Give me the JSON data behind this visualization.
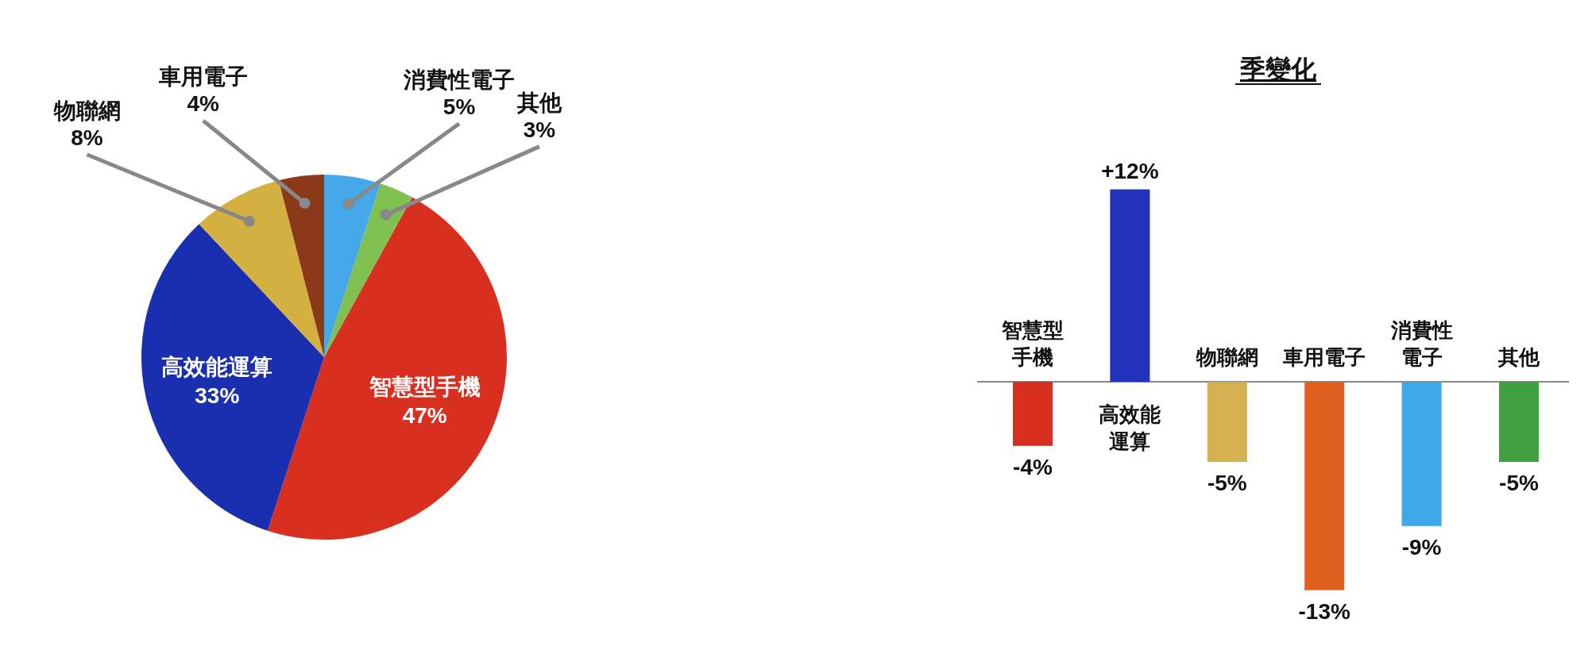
{
  "chart_data": [
    {
      "type": "pie",
      "categories": [
        "智慧型手機",
        "高效能運算",
        "物聯網",
        "車用電子",
        "消費性電子",
        "其他"
      ],
      "values": [
        47,
        33,
        8,
        4,
        5,
        3
      ],
      "colors": [
        "#d83020",
        "#1a2fb0",
        "#d4b040",
        "#8a3a18",
        "#45a8e8",
        "#80c050"
      ],
      "value_labels": [
        "47%",
        "33%",
        "8%",
        "4%",
        "5%",
        "3%"
      ]
    },
    {
      "type": "bar",
      "title": "季變化",
      "categories": [
        "智慧型手機",
        "高效能運算",
        "物聯網",
        "車用電子",
        "消費性電子",
        "其他"
      ],
      "values": [
        -4,
        12,
        -5,
        -13,
        -9,
        -5
      ],
      "colors": [
        "#d83020",
        "#2233bb",
        "#d4b050",
        "#e06020",
        "#40a8e8",
        "#40a040"
      ],
      "value_labels": [
        "-4%",
        "+12%",
        "-5%",
        "-13%",
        "-9%",
        "-5%"
      ]
    }
  ]
}
